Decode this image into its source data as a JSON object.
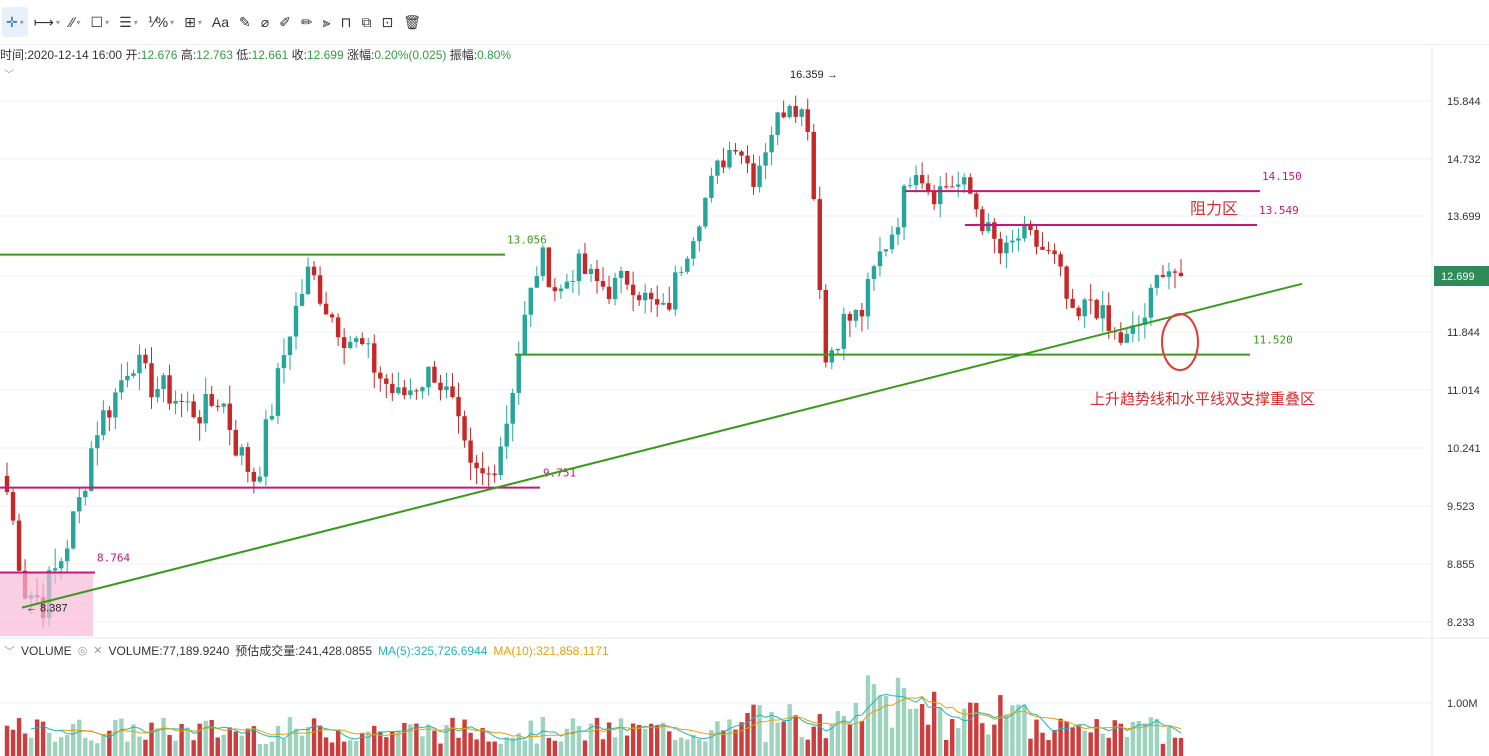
{
  "toolbar": {
    "items": [
      {
        "name": "crosshair-icon",
        "glyph": "✛",
        "caret": true,
        "active": true
      },
      {
        "name": "horizontal-ray-icon",
        "glyph": "⟼",
        "caret": true
      },
      {
        "name": "trend-line-icon",
        "glyph": "⁄⁄",
        "caret": true
      },
      {
        "name": "rectangle-icon",
        "glyph": "☐",
        "caret": true
      },
      {
        "name": "fib-lines-icon",
        "glyph": "☰",
        "caret": true
      },
      {
        "name": "percent-ruler-icon",
        "glyph": "⅟%",
        "caret": true
      },
      {
        "name": "measure-icon",
        "glyph": "⊞",
        "caret": true
      },
      {
        "name": "text-icon",
        "glyph": "Aa",
        "caret": false
      },
      {
        "name": "brush-icon",
        "glyph": "✎",
        "caret": false
      },
      {
        "name": "eraser-icon",
        "glyph": "⌀",
        "caret": false
      },
      {
        "name": "ruler-icon",
        "glyph": "✐",
        "caret": false
      },
      {
        "name": "pencil-icon",
        "glyph": "✏",
        "caret": false
      },
      {
        "name": "magnet-icon",
        "glyph": "⫸",
        "caret": false
      },
      {
        "name": "lock-icon",
        "glyph": "⊓",
        "caret": false
      },
      {
        "name": "copy-icon",
        "glyph": "⧉",
        "caret": false
      },
      {
        "name": "hide-icon",
        "glyph": "⊡",
        "caret": false
      },
      {
        "name": "trash-icon",
        "glyph": "🗑",
        "caret": false
      }
    ]
  },
  "info": {
    "time_label": "时间:",
    "time": "2020-12-14 16:00",
    "open_label": "开:",
    "open": "12.676",
    "high_label": "高:",
    "high": "12.763",
    "low_label": "低:",
    "low": "12.661",
    "close_label": "收:",
    "close": "12.699",
    "chg_label": "涨幅:",
    "chg": "0.20%(0.025)",
    "amp_label": "振幅:",
    "amp": "0.80%"
  },
  "volume_header": {
    "name": "VOLUME",
    "volume": "VOLUME:77,189.9240",
    "est": "预估成交量:241,428.0855",
    "ma5": "MA(5):325,726.6944",
    "ma10": "MA(10):321,858.1171"
  },
  "chart_data": {
    "type": "candlestick",
    "price_axis_ticks": [
      "15.844",
      "14.732",
      "13.699",
      "12.699",
      "11.844",
      "11.014",
      "10.241",
      "9.523",
      "8.855",
      "8.233"
    ],
    "price_axis_values": [
      15.844,
      14.732,
      13.699,
      12.699,
      11.844,
      11.014,
      10.241,
      9.523,
      8.855,
      8.233
    ],
    "current_price": "12.699",
    "volume_axis_ticks": [
      "1.00M"
    ],
    "volume_axis_values": [
      1000000
    ],
    "colors": {
      "up": "#26a69a",
      "down": "#c62828",
      "resistance": "#c2187a",
      "support": "#3a9a1a",
      "annotation": "#d32f2f",
      "current_price_bg": "#2f8a5a"
    },
    "horizontal_lines": [
      {
        "label": "13.056",
        "value": 13.056,
        "color": "support"
      },
      {
        "label": "11.520",
        "value": 11.52,
        "color": "support"
      },
      {
        "label": "9.751",
        "value": 9.751,
        "color": "resistance"
      },
      {
        "label": "8.764",
        "value": 8.764,
        "color": "resistance"
      },
      {
        "label": "14.150",
        "value": 14.15,
        "color": "resistance"
      },
      {
        "label": "13.549",
        "value": 13.549,
        "color": "resistance"
      }
    ],
    "extremes": [
      {
        "label": "16.359",
        "value": 16.359,
        "kind": "high"
      },
      {
        "label": "8.387",
        "value": 8.387,
        "kind": "low"
      }
    ],
    "trend_line": {
      "from": 8.387,
      "to": 12.0
    },
    "annotations": {
      "resistance_zone": "阻力区",
      "support_overlap": "上升趋势线和水平线双支撑重叠区"
    },
    "price_path": [
      9.7,
      8.6,
      8.45,
      8.9,
      9.5,
      10.5,
      10.9,
      11.5,
      11.1,
      11.0,
      10.8,
      10.7,
      10.95,
      10.2,
      9.85,
      10.9,
      12.0,
      12.8,
      12.2,
      11.8,
      11.6,
      11.2,
      10.9,
      11.1,
      11.3,
      10.8,
      9.9,
      9.85,
      10.5,
      11.9,
      13.05,
      12.4,
      12.9,
      12.6,
      12.5,
      12.7,
      12.3,
      12.1,
      13.0,
      13.8,
      14.6,
      15.1,
      14.4,
      15.3,
      15.9,
      15.5,
      11.4,
      12.0,
      12.1,
      13.0,
      13.6,
      14.7,
      14.1,
      14.3,
      14.2,
      13.5,
      13.0,
      13.4,
      13.2,
      12.9,
      11.9,
      12.4,
      11.8,
      11.7,
      12.1,
      12.9,
      12.7
    ]
  }
}
